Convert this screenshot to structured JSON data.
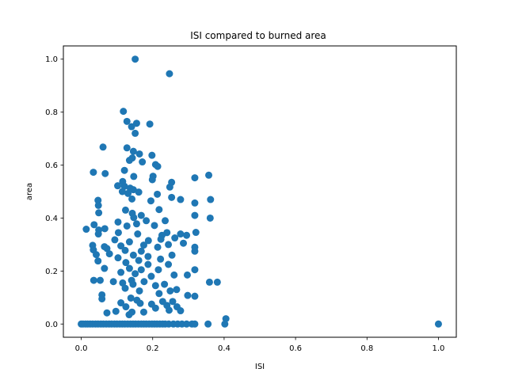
{
  "chart_data": {
    "type": "scatter",
    "title": "ISI compared to burned area",
    "xlabel": "ISI",
    "ylabel": "area",
    "xlim": [
      -0.05,
      1.05
    ],
    "ylim": [
      -0.05,
      1.05
    ],
    "xticks": [
      "0.0",
      "0.2",
      "0.4",
      "0.6",
      "0.8",
      "1.0"
    ],
    "yticks": [
      "0.0",
      "0.2",
      "0.4",
      "0.6",
      "0.8",
      "1.0"
    ],
    "xtick_values": [
      0,
      0.2,
      0.4,
      0.6,
      0.8,
      1.0
    ],
    "ytick_values": [
      0,
      0.2,
      0.4,
      0.6,
      0.8,
      1.0
    ],
    "grid": false,
    "marker_color": "#1f77b4",
    "series": [
      {
        "points": [
          [
            0.151,
            1.0
          ],
          [
            0.247,
            0.945
          ],
          [
            0.118,
            0.803
          ],
          [
            0.128,
            0.765
          ],
          [
            0.155,
            0.758
          ],
          [
            0.192,
            0.755
          ],
          [
            0.141,
            0.745
          ],
          [
            0.151,
            0.72
          ],
          [
            0.061,
            0.668
          ],
          [
            0.128,
            0.665
          ],
          [
            0.146,
            0.652
          ],
          [
            0.163,
            0.642
          ],
          [
            0.198,
            0.637
          ],
          [
            0.143,
            0.627
          ],
          [
            0.135,
            0.618
          ],
          [
            0.171,
            0.612
          ],
          [
            0.208,
            0.602
          ],
          [
            0.214,
            0.595
          ],
          [
            0.121,
            0.58
          ],
          [
            0.034,
            0.573
          ],
          [
            0.067,
            0.568
          ],
          [
            0.357,
            0.562
          ],
          [
            0.201,
            0.558
          ],
          [
            0.147,
            0.557
          ],
          [
            0.318,
            0.552
          ],
          [
            0.199,
            0.545
          ],
          [
            0.116,
            0.538
          ],
          [
            0.253,
            0.535
          ],
          [
            0.102,
            0.522
          ],
          [
            0.121,
            0.52
          ],
          [
            0.248,
            0.517
          ],
          [
            0.137,
            0.513
          ],
          [
            0.146,
            0.507
          ],
          [
            0.115,
            0.5
          ],
          [
            0.161,
            0.498
          ],
          [
            0.131,
            0.493
          ],
          [
            0.213,
            0.49
          ],
          [
            0.047,
            0.467
          ],
          [
            0.278,
            0.47
          ],
          [
            0.362,
            0.47
          ],
          [
            0.195,
            0.465
          ],
          [
            0.253,
            0.478
          ],
          [
            0.142,
            0.472
          ],
          [
            0.318,
            0.457
          ],
          [
            0.048,
            0.448
          ],
          [
            0.218,
            0.432
          ],
          [
            0.049,
            0.42
          ],
          [
            0.124,
            0.43
          ],
          [
            0.143,
            0.418
          ],
          [
            0.168,
            0.41
          ],
          [
            0.318,
            0.41
          ],
          [
            0.361,
            0.4
          ],
          [
            0.147,
            0.402
          ],
          [
            0.235,
            0.39
          ],
          [
            0.103,
            0.385
          ],
          [
            0.182,
            0.39
          ],
          [
            0.036,
            0.375
          ],
          [
            0.014,
            0.358
          ],
          [
            0.049,
            0.355
          ],
          [
            0.066,
            0.36
          ],
          [
            0.128,
            0.37
          ],
          [
            0.155,
            0.378
          ],
          [
            0.205,
            0.372
          ],
          [
            0.278,
            0.34
          ],
          [
            0.24,
            0.345
          ],
          [
            0.321,
            0.346
          ],
          [
            0.048,
            0.34
          ],
          [
            0.104,
            0.345
          ],
          [
            0.158,
            0.34
          ],
          [
            0.226,
            0.335
          ],
          [
            0.295,
            0.335
          ],
          [
            0.262,
            0.325
          ],
          [
            0.094,
            0.318
          ],
          [
            0.135,
            0.31
          ],
          [
            0.188,
            0.315
          ],
          [
            0.223,
            0.32
          ],
          [
            0.286,
            0.305
          ],
          [
            0.032,
            0.297
          ],
          [
            0.065,
            0.292
          ],
          [
            0.111,
            0.295
          ],
          [
            0.175,
            0.298
          ],
          [
            0.244,
            0.3
          ],
          [
            0.318,
            0.29
          ],
          [
            0.034,
            0.28
          ],
          [
            0.072,
            0.285
          ],
          [
            0.123,
            0.278
          ],
          [
            0.168,
            0.275
          ],
          [
            0.214,
            0.29
          ],
          [
            0.318,
            0.275
          ],
          [
            0.042,
            0.262
          ],
          [
            0.079,
            0.265
          ],
          [
            0.146,
            0.26
          ],
          [
            0.187,
            0.255
          ],
          [
            0.254,
            0.26
          ],
          [
            0.103,
            0.25
          ],
          [
            0.161,
            0.24
          ],
          [
            0.222,
            0.245
          ],
          [
            0.047,
            0.238
          ],
          [
            0.125,
            0.232
          ],
          [
            0.187,
            0.225
          ],
          [
            0.244,
            0.225
          ],
          [
            0.065,
            0.21
          ],
          [
            0.135,
            0.21
          ],
          [
            0.168,
            0.205
          ],
          [
            0.216,
            0.205
          ],
          [
            0.318,
            0.205
          ],
          [
            0.111,
            0.195
          ],
          [
            0.151,
            0.19
          ],
          [
            0.26,
            0.185
          ],
          [
            0.297,
            0.185
          ],
          [
            0.196,
            0.18
          ],
          [
            0.053,
            0.165
          ],
          [
            0.035,
            0.165
          ],
          [
            0.09,
            0.16
          ],
          [
            0.141,
            0.165
          ],
          [
            0.176,
            0.16
          ],
          [
            0.359,
            0.158
          ],
          [
            0.381,
            0.158
          ],
          [
            0.116,
            0.155
          ],
          [
            0.233,
            0.15
          ],
          [
            0.145,
            0.15
          ],
          [
            0.208,
            0.145
          ],
          [
            0.267,
            0.13
          ],
          [
            0.123,
            0.135
          ],
          [
            0.163,
            0.125
          ],
          [
            0.249,
            0.125
          ],
          [
            0.218,
            0.115
          ],
          [
            0.298,
            0.108
          ],
          [
            0.318,
            0.105
          ],
          [
            0.058,
            0.11
          ],
          [
            0.139,
            0.098
          ],
          [
            0.058,
            0.095
          ],
          [
            0.156,
            0.09
          ],
          [
            0.228,
            0.085
          ],
          [
            0.256,
            0.085
          ],
          [
            0.111,
            0.08
          ],
          [
            0.165,
            0.078
          ],
          [
            0.197,
            0.075
          ],
          [
            0.24,
            0.07
          ],
          [
            0.125,
            0.065
          ],
          [
            0.268,
            0.065
          ],
          [
            0.208,
            0.06
          ],
          [
            0.097,
            0.048
          ],
          [
            0.072,
            0.042
          ],
          [
            0.134,
            0.035
          ],
          [
            0.142,
            0.045
          ],
          [
            0.175,
            0.045
          ],
          [
            0.246,
            0.052
          ],
          [
            0.278,
            0.05
          ],
          [
            0.405,
            0.02
          ],
          [
            0.0,
            0.0
          ],
          [
            0.005,
            0.0
          ],
          [
            0.012,
            0.0
          ],
          [
            0.018,
            0.0
          ],
          [
            0.025,
            0.0
          ],
          [
            0.032,
            0.0
          ],
          [
            0.04,
            0.0
          ],
          [
            0.047,
            0.0
          ],
          [
            0.055,
            0.0
          ],
          [
            0.062,
            0.0
          ],
          [
            0.07,
            0.0
          ],
          [
            0.078,
            0.0
          ],
          [
            0.085,
            0.0
          ],
          [
            0.093,
            0.0
          ],
          [
            0.1,
            0.0
          ],
          [
            0.108,
            0.0
          ],
          [
            0.115,
            0.0
          ],
          [
            0.122,
            0.0
          ],
          [
            0.13,
            0.0
          ],
          [
            0.138,
            0.0
          ],
          [
            0.145,
            0.0
          ],
          [
            0.152,
            0.0
          ],
          [
            0.16,
            0.0
          ],
          [
            0.168,
            0.0
          ],
          [
            0.175,
            0.0
          ],
          [
            0.182,
            0.0
          ],
          [
            0.19,
            0.0
          ],
          [
            0.198,
            0.0
          ],
          [
            0.205,
            0.0
          ],
          [
            0.212,
            0.0
          ],
          [
            0.22,
            0.0
          ],
          [
            0.228,
            0.0
          ],
          [
            0.235,
            0.0
          ],
          [
            0.245,
            0.0
          ],
          [
            0.258,
            0.0
          ],
          [
            0.27,
            0.0
          ],
          [
            0.282,
            0.0
          ],
          [
            0.295,
            0.0
          ],
          [
            0.31,
            0.0
          ],
          [
            0.318,
            0.0
          ],
          [
            0.355,
            0.0
          ],
          [
            0.402,
            0.0
          ],
          [
            1.0,
            0.0
          ]
        ]
      }
    ]
  }
}
